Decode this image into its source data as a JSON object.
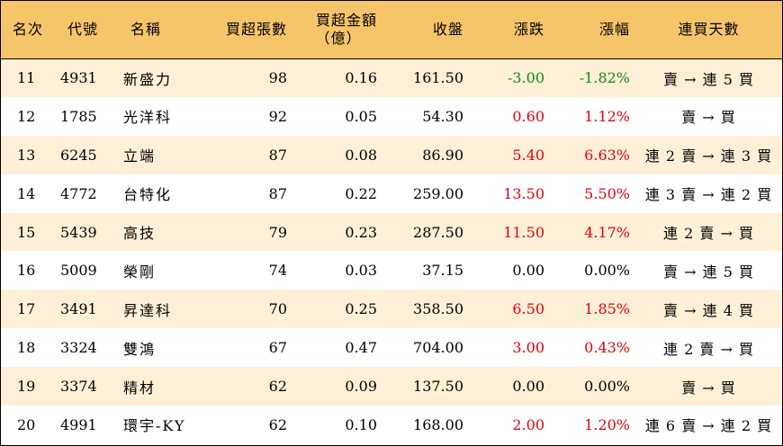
{
  "colors": {
    "header_bg": "#f6c56a",
    "stripe_bg": "#fdf0d7",
    "up": "#e8000b",
    "down": "#138a13"
  },
  "headers": {
    "rank": "名次",
    "code": "代號",
    "name": "名稱",
    "net_buy_lots": "買超張數",
    "net_buy_amount": "買超金額",
    "net_buy_amount_unit": "（億）",
    "close": "收盤",
    "change": "漲跌",
    "change_pct": "漲幅",
    "streak": "連買天數"
  },
  "rows": [
    {
      "rank": "11",
      "code": "4931",
      "name": "新盛力",
      "lots": "98",
      "amount": "0.16",
      "close": "161.50",
      "change": "-3.00",
      "pct": "-1.82%",
      "dir": "down",
      "streak": "賣 → 連 5 買"
    },
    {
      "rank": "12",
      "code": "1785",
      "name": "光洋科",
      "lots": "92",
      "amount": "0.05",
      "close": "54.30",
      "change": "0.60",
      "pct": "1.12%",
      "dir": "up",
      "streak": "賣 → 買"
    },
    {
      "rank": "13",
      "code": "6245",
      "name": "立端",
      "lots": "87",
      "amount": "0.08",
      "close": "86.90",
      "change": "5.40",
      "pct": "6.63%",
      "dir": "up",
      "streak": "連 2 賣 → 連 3 買"
    },
    {
      "rank": "14",
      "code": "4772",
      "name": "台特化",
      "lots": "87",
      "amount": "0.22",
      "close": "259.00",
      "change": "13.50",
      "pct": "5.50%",
      "dir": "up",
      "streak": "連 3 賣 → 連 2 買"
    },
    {
      "rank": "15",
      "code": "5439",
      "name": "高技",
      "lots": "79",
      "amount": "0.23",
      "close": "287.50",
      "change": "11.50",
      "pct": "4.17%",
      "dir": "up",
      "streak": "連 2 賣 → 買"
    },
    {
      "rank": "16",
      "code": "5009",
      "name": "榮剛",
      "lots": "74",
      "amount": "0.03",
      "close": "37.15",
      "change": "0.00",
      "pct": "0.00%",
      "dir": "flat",
      "streak": "賣 → 連 5 買"
    },
    {
      "rank": "17",
      "code": "3491",
      "name": "昇達科",
      "lots": "70",
      "amount": "0.25",
      "close": "358.50",
      "change": "6.50",
      "pct": "1.85%",
      "dir": "up",
      "streak": "賣 → 連 4 買"
    },
    {
      "rank": "18",
      "code": "3324",
      "name": "雙鴻",
      "lots": "67",
      "amount": "0.47",
      "close": "704.00",
      "change": "3.00",
      "pct": "0.43%",
      "dir": "up",
      "streak": "連 2 賣 → 買"
    },
    {
      "rank": "19",
      "code": "3374",
      "name": "精材",
      "lots": "62",
      "amount": "0.09",
      "close": "137.50",
      "change": "0.00",
      "pct": "0.00%",
      "dir": "flat",
      "streak": "賣 → 買"
    },
    {
      "rank": "20",
      "code": "4991",
      "name": "環宇-KY",
      "lots": "62",
      "amount": "0.10",
      "close": "168.00",
      "change": "2.00",
      "pct": "1.20%",
      "dir": "up",
      "streak": "連 6 賣 → 連 2 買"
    }
  ]
}
